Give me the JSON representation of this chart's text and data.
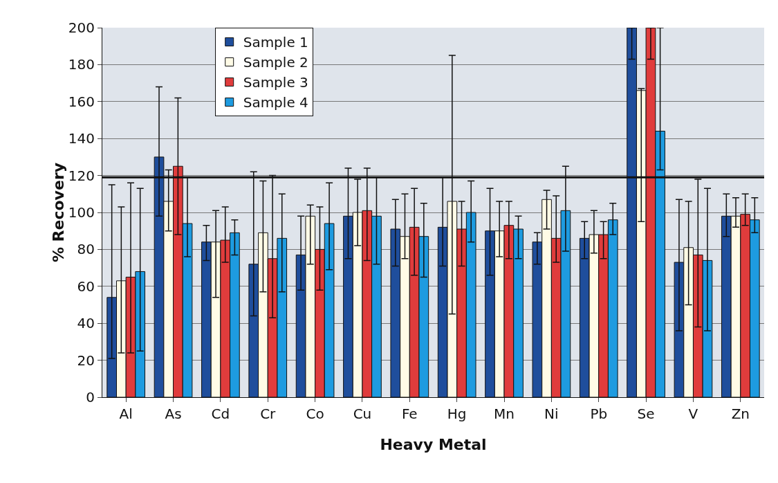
{
  "chart_data": {
    "type": "bar",
    "xlabel": "Heavy Metal",
    "ylabel": "% Recovery",
    "categories": [
      "Al",
      "As",
      "Cd",
      "Cr",
      "Co",
      "Cu",
      "Fe",
      "Hg",
      "Mn",
      "Ni",
      "Pb",
      "Se",
      "V",
      "Zn"
    ],
    "series": [
      {
        "name": "Sample 1",
        "color": "#1f4e9c",
        "values": [
          54,
          130,
          84,
          72,
          77,
          98,
          91,
          92,
          90,
          84,
          86,
          200,
          73,
          98
        ],
        "errors": [
          [
            21,
            115
          ],
          [
            98,
            168
          ],
          [
            74,
            93
          ],
          [
            44,
            122
          ],
          [
            58,
            98
          ],
          [
            75,
            124
          ],
          [
            71,
            107
          ],
          [
            71,
            119
          ],
          [
            66,
            113
          ],
          [
            72,
            89
          ],
          [
            75,
            95
          ],
          [
            183,
            200
          ],
          [
            36,
            107
          ],
          [
            87,
            110
          ]
        ]
      },
      {
        "name": "Sample 2",
        "color": "#fffbe6",
        "values": [
          63,
          106,
          84,
          89,
          98,
          100,
          87,
          106,
          90,
          107,
          88,
          166,
          81,
          98
        ],
        "errors": [
          [
            24,
            103
          ],
          [
            90,
            123
          ],
          [
            54,
            101
          ],
          [
            57,
            117
          ],
          [
            72,
            104
          ],
          [
            82,
            118
          ],
          [
            75,
            110
          ],
          [
            45,
            185
          ],
          [
            76,
            106
          ],
          [
            91,
            112
          ],
          [
            78,
            101
          ],
          [
            95,
            167
          ],
          [
            50,
            106
          ],
          [
            92,
            108
          ]
        ]
      },
      {
        "name": "Sample 3",
        "color": "#e03c3c",
        "values": [
          65,
          125,
          85,
          75,
          80,
          101,
          92,
          91,
          93,
          86,
          88,
          200,
          77,
          99
        ],
        "errors": [
          [
            24,
            116
          ],
          [
            88,
            162
          ],
          [
            73,
            103
          ],
          [
            43,
            120
          ],
          [
            58,
            103
          ],
          [
            74,
            124
          ],
          [
            66,
            113
          ],
          [
            71,
            106
          ],
          [
            75,
            106
          ],
          [
            73,
            109
          ],
          [
            75,
            95
          ],
          [
            183,
            200
          ],
          [
            38,
            118
          ],
          [
            93,
            110
          ]
        ]
      },
      {
        "name": "Sample 4",
        "color": "#1e9be0",
        "values": [
          68,
          94,
          89,
          86,
          94,
          98,
          87,
          100,
          91,
          101,
          96,
          144,
          74,
          96
        ],
        "errors": [
          [
            25,
            113
          ],
          [
            76,
            119
          ],
          [
            77,
            96
          ],
          [
            57,
            110
          ],
          [
            69,
            116
          ],
          [
            72,
            119
          ],
          [
            65,
            105
          ],
          [
            84,
            117
          ],
          [
            75,
            98
          ],
          [
            79,
            125
          ],
          [
            88,
            105
          ],
          [
            123,
            200
          ],
          [
            36,
            113
          ],
          [
            89,
            108
          ]
        ]
      }
    ],
    "ylim": [
      0,
      200
    ],
    "yticks": [
      0,
      20,
      40,
      60,
      80,
      100,
      120,
      140,
      160,
      180,
      200
    ],
    "ref_lines": [
      {
        "axis": "y",
        "value": 119,
        "color": "#111111"
      }
    ],
    "grid": "y",
    "legend": "top left"
  }
}
